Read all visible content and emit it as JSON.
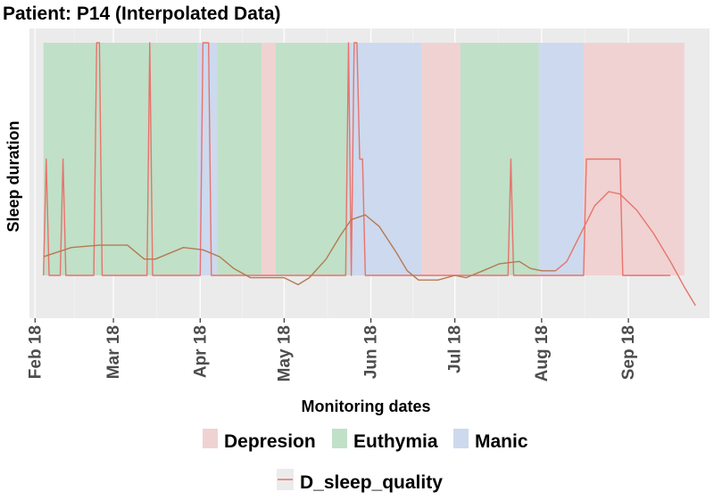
{
  "chart_data": {
    "type": "line",
    "title": "Patient: P14 (Interpolated Data)",
    "xlabel": "Monitoring dates",
    "ylabel": "Sleep duration",
    "x_ticks": [
      "Feb 18",
      "Mar 18",
      "Apr 18",
      "May 18",
      "Jun 18",
      "Jul 18",
      "Aug 18",
      "Sep 18"
    ],
    "x_range": [
      "2018-01-30",
      "2018-09-30"
    ],
    "y_range": [
      -0.15,
      1.0
    ],
    "grid": true,
    "state_periods": [
      {
        "state": "Euthymia",
        "start": "2018-02-04",
        "end": "2018-03-31"
      },
      {
        "state": "Manic",
        "start": "2018-03-31",
        "end": "2018-04-07"
      },
      {
        "state": "Euthymia",
        "start": "2018-04-07",
        "end": "2018-04-23"
      },
      {
        "state": "Depresion",
        "start": "2018-04-23",
        "end": "2018-04-28"
      },
      {
        "state": "Euthymia",
        "start": "2018-04-28",
        "end": "2018-05-24"
      },
      {
        "state": "Manic",
        "start": "2018-05-24",
        "end": "2018-06-19"
      },
      {
        "state": "Depresion",
        "start": "2018-06-19",
        "end": "2018-07-03"
      },
      {
        "state": "Euthymia",
        "start": "2018-07-03",
        "end": "2018-07-31"
      },
      {
        "state": "Manic",
        "start": "2018-07-31",
        "end": "2018-08-16"
      },
      {
        "state": "Depresion",
        "start": "2018-08-16",
        "end": "2018-09-21"
      }
    ],
    "state_colors": {
      "Depresion": "#f0d2d2",
      "Euthymia": "#c0e0c8",
      "Manic": "#cdd9ee"
    },
    "legend_states": [
      "Depresion",
      "Euthymia",
      "Manic"
    ],
    "series": [
      {
        "name": "D_sleep_quality",
        "color": "#e8736c",
        "points": [
          [
            "2018-02-04",
            0.0
          ],
          [
            "2018-02-05",
            0.5
          ],
          [
            "2018-02-06",
            0.0
          ],
          [
            "2018-02-10",
            0.0
          ],
          [
            "2018-02-11",
            0.5
          ],
          [
            "2018-02-12",
            0.0
          ],
          [
            "2018-02-22",
            0.0
          ],
          [
            "2018-02-23",
            1.0
          ],
          [
            "2018-02-24",
            1.0
          ],
          [
            "2018-02-25",
            0.0
          ],
          [
            "2018-03-13",
            0.0
          ],
          [
            "2018-03-14",
            1.0
          ],
          [
            "2018-03-15",
            0.0
          ],
          [
            "2018-04-01",
            0.0
          ],
          [
            "2018-04-02",
            1.0
          ],
          [
            "2018-04-04",
            1.0
          ],
          [
            "2018-04-05",
            0.0
          ],
          [
            "2018-05-23",
            0.0
          ],
          [
            "2018-05-24",
            1.0
          ],
          [
            "2018-05-25",
            0.0
          ],
          [
            "2018-05-26",
            1.0
          ],
          [
            "2018-05-27",
            1.0
          ],
          [
            "2018-05-28",
            0.5
          ],
          [
            "2018-05-29",
            0.5
          ],
          [
            "2018-05-30",
            0.0
          ],
          [
            "2018-07-20",
            0.0
          ],
          [
            "2018-07-21",
            0.5
          ],
          [
            "2018-07-22",
            0.0
          ],
          [
            "2018-08-16",
            0.0
          ],
          [
            "2018-08-17",
            0.5
          ],
          [
            "2018-08-29",
            0.5
          ],
          [
            "2018-08-30",
            0.0
          ],
          [
            "2018-09-16",
            0.0
          ]
        ]
      },
      {
        "name": "",
        "color": "#b47a52",
        "points": [
          [
            "2018-02-04",
            0.08
          ],
          [
            "2018-02-14",
            0.12
          ],
          [
            "2018-02-24",
            0.13
          ],
          [
            "2018-03-06",
            0.13
          ],
          [
            "2018-03-12",
            0.07
          ],
          [
            "2018-03-16",
            0.07
          ],
          [
            "2018-03-26",
            0.12
          ],
          [
            "2018-04-02",
            0.11
          ],
          [
            "2018-04-08",
            0.08
          ],
          [
            "2018-04-13",
            0.03
          ],
          [
            "2018-04-19",
            -0.01
          ],
          [
            "2018-04-25",
            -0.01
          ],
          [
            "2018-05-01",
            -0.01
          ],
          [
            "2018-05-06",
            -0.04
          ],
          [
            "2018-05-10",
            -0.01
          ],
          [
            "2018-05-16",
            0.07
          ],
          [
            "2018-05-21",
            0.17
          ],
          [
            "2018-05-25",
            0.24
          ],
          [
            "2018-05-30",
            0.26
          ],
          [
            "2018-06-04",
            0.21
          ],
          [
            "2018-06-10",
            0.1
          ],
          [
            "2018-06-14",
            0.02
          ],
          [
            "2018-06-18",
            -0.02
          ],
          [
            "2018-06-25",
            -0.02
          ],
          [
            "2018-07-01",
            0.0
          ],
          [
            "2018-07-05",
            -0.01
          ],
          [
            "2018-07-11",
            0.02
          ],
          [
            "2018-07-17",
            0.05
          ],
          [
            "2018-07-24",
            0.06
          ],
          [
            "2018-07-28",
            0.03
          ],
          [
            "2018-08-01",
            0.02
          ],
          [
            "2018-08-06",
            0.02
          ]
        ]
      },
      {
        "name": "",
        "color": "#e8736c",
        "points": [
          [
            "2018-08-06",
            0.02
          ],
          [
            "2018-08-10",
            0.06
          ],
          [
            "2018-08-15",
            0.18
          ],
          [
            "2018-08-20",
            0.3
          ],
          [
            "2018-08-25",
            0.36
          ],
          [
            "2018-08-29",
            0.35
          ],
          [
            "2018-09-04",
            0.28
          ],
          [
            "2018-09-10",
            0.18
          ],
          [
            "2018-09-16",
            0.06
          ],
          [
            "2018-09-21",
            -0.05
          ],
          [
            "2018-09-25",
            -0.13
          ]
        ]
      }
    ]
  }
}
